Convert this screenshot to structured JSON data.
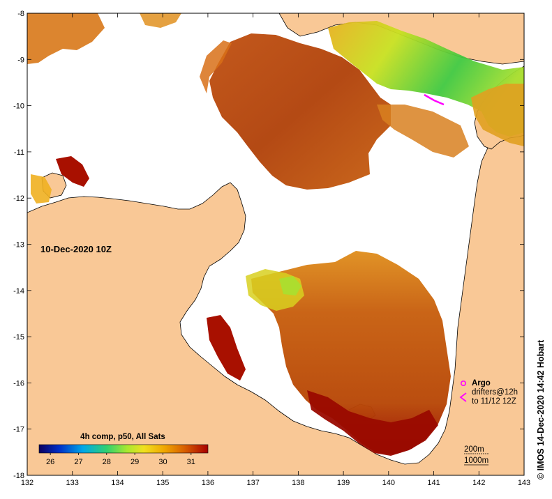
{
  "map": {
    "date_label": "10-Dec-2020 10Z",
    "credit": "© IMOS 14-Dec-2020 14:42 Hobart",
    "land_color": "#f9c896",
    "no_data_color": "#ffffff",
    "lon_range": [
      132,
      143
    ],
    "lat_range": [
      -18,
      -8
    ],
    "lon_ticks": [
      "132",
      "133",
      "134",
      "135",
      "136",
      "137",
      "138",
      "139",
      "140",
      "141",
      "142",
      "143"
    ],
    "lat_ticks": [
      "-8",
      "-9",
      "-10",
      "-11",
      "-12",
      "-13",
      "-14",
      "-15",
      "-16",
      "-17",
      "-18"
    ]
  },
  "colorbar": {
    "title": "4h comp, p50, All Sats",
    "ticks": [
      "26",
      "27",
      "28",
      "29",
      "30",
      "31"
    ],
    "range": [
      25.6,
      31.6
    ],
    "colors": [
      "#0b0060",
      "#0030c8",
      "#00a8e8",
      "#30d070",
      "#a8e830",
      "#f0e020",
      "#f0a800",
      "#d86000",
      "#a80000"
    ]
  },
  "legend": {
    "argo_label": "Argo",
    "drifters_label": "drifters@12h",
    "drifters_range": "to 11/12 12Z",
    "argo_color": "#ff00ff",
    "depth_200": "200m",
    "depth_1000": "1000m"
  }
}
